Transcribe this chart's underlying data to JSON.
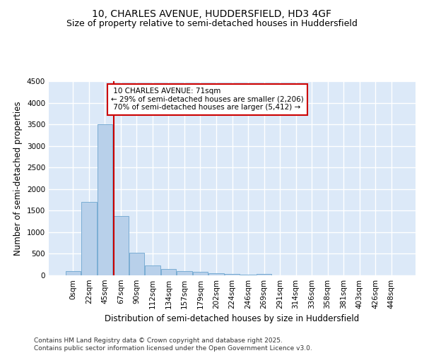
{
  "title_line1": "10, CHARLES AVENUE, HUDDERSFIELD, HD3 4GF",
  "title_line2": "Size of property relative to semi-detached houses in Huddersfield",
  "xlabel": "Distribution of semi-detached houses by size in Huddersfield",
  "ylabel": "Number of semi-detached properties",
  "footer": "Contains HM Land Registry data © Crown copyright and database right 2025.\nContains public sector information licensed under the Open Government Licence v3.0.",
  "bar_labels": [
    "0sqm",
    "22sqm",
    "45sqm",
    "67sqm",
    "90sqm",
    "112sqm",
    "134sqm",
    "157sqm",
    "179sqm",
    "202sqm",
    "224sqm",
    "246sqm",
    "269sqm",
    "291sqm",
    "314sqm",
    "336sqm",
    "358sqm",
    "381sqm",
    "403sqm",
    "426sqm",
    "448sqm"
  ],
  "bar_values": [
    100,
    1700,
    3500,
    1380,
    530,
    230,
    150,
    100,
    80,
    50,
    30,
    20,
    30,
    5,
    0,
    0,
    0,
    0,
    0,
    0,
    0
  ],
  "bar_color": "#b8d0ea",
  "bar_edge_color": "#7aadd4",
  "ylim": [
    0,
    4500
  ],
  "yticks": [
    0,
    500,
    1000,
    1500,
    2000,
    2500,
    3000,
    3500,
    4000,
    4500
  ],
  "property_label": "10 CHARLES AVENUE: 71sqm",
  "pct_smaller": 29,
  "pct_larger": 70,
  "n_smaller": 2206,
  "n_larger": 5412,
  "vline_x": 2.55,
  "annotation_box_color": "#cc0000",
  "background_color": "#dce9f8",
  "grid_color": "#ffffff",
  "title_fontsize": 10,
  "subtitle_fontsize": 9,
  "axis_label_fontsize": 8.5,
  "tick_fontsize": 7.5,
  "annotation_fontsize": 7.5,
  "footer_fontsize": 6.5
}
